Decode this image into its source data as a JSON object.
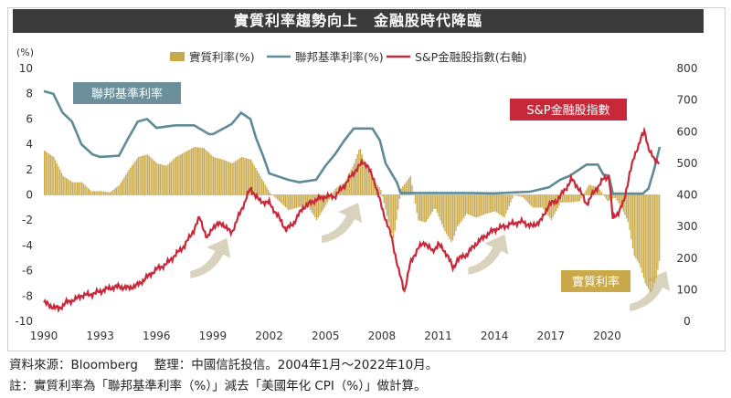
{
  "title": "實質利率趨勢向上　金融股時代降臨",
  "footer": {
    "source": "資料來源：Bloomberg　 整理：中國信託投信。2004年1月〜2022年10月。",
    "note": "註：實質利率為「聯邦基準利率（%）」減去「美國年化 CPI（%）」做計算。"
  },
  "colors": {
    "real_rate": "#c9a94a",
    "fed_rate": "#5f8a96",
    "sp_fin": "#c8293a",
    "arrow": "#d9d2bd",
    "label_box_fed": "#6b8f9b",
    "label_box_sp": "#c8293a",
    "label_box_real": "#c9a94a"
  },
  "chart_data": {
    "type": "line",
    "legend": [
      "實質利率(%)",
      "聯邦基準利率(%)",
      "S&P金融股指數(右軸)"
    ],
    "legend_position": "top",
    "y_left_unit": "(%)",
    "y_left_ticks": [
      "10",
      "8",
      "6",
      "4",
      "2",
      "0",
      "-2",
      "-4",
      "-6",
      "-8",
      "-10"
    ],
    "y_right_ticks": [
      "800",
      "700",
      "600",
      "500",
      "400",
      "300",
      "200",
      "100",
      "0"
    ],
    "x_ticks": [
      "1990",
      "1993",
      "1996",
      "1999",
      "2002",
      "2005",
      "2008",
      "2011",
      "2014",
      "2017",
      "2020"
    ],
    "ylim_left": [
      -10,
      10
    ],
    "ylim_right": [
      0,
      800
    ],
    "xlim": [
      1990,
      2022.8
    ],
    "annotations": [
      "聯邦基準利率",
      "S&P金融股指數",
      "實質利率"
    ],
    "series": [
      {
        "name": "聯邦基準利率(%)",
        "axis": "left",
        "points": [
          [
            1990,
            8.2
          ],
          [
            1990.5,
            8.0
          ],
          [
            1991,
            6.5
          ],
          [
            1991.5,
            5.8
          ],
          [
            1992,
            4.0
          ],
          [
            1992.6,
            3.2
          ],
          [
            1993,
            3.0
          ],
          [
            1994,
            3.1
          ],
          [
            1994.5,
            4.5
          ],
          [
            1995,
            5.8
          ],
          [
            1995.5,
            6.0
          ],
          [
            1996,
            5.3
          ],
          [
            1997,
            5.5
          ],
          [
            1998,
            5.5
          ],
          [
            1998.8,
            4.8
          ],
          [
            1999,
            4.8
          ],
          [
            1999.5,
            5.2
          ],
          [
            2000,
            5.6
          ],
          [
            2000.5,
            6.5
          ],
          [
            2001,
            6.0
          ],
          [
            2001.3,
            4.5
          ],
          [
            2001.7,
            3.0
          ],
          [
            2002,
            1.7
          ],
          [
            2003,
            1.2
          ],
          [
            2003.6,
            1.0
          ],
          [
            2004.5,
            1.2
          ],
          [
            2005,
            2.3
          ],
          [
            2005.5,
            3.2
          ],
          [
            2006,
            4.3
          ],
          [
            2006.5,
            5.25
          ],
          [
            2007.5,
            5.25
          ],
          [
            2007.9,
            4.3
          ],
          [
            2008.2,
            2.5
          ],
          [
            2008.8,
            1.0
          ],
          [
            2009,
            0.15
          ],
          [
            2010,
            0.15
          ],
          [
            2012,
            0.15
          ],
          [
            2014,
            0.12
          ],
          [
            2015.9,
            0.25
          ],
          [
            2016.9,
            0.6
          ],
          [
            2017.5,
            1.2
          ],
          [
            2018,
            1.5
          ],
          [
            2018.9,
            2.4
          ],
          [
            2019.5,
            2.4
          ],
          [
            2019.8,
            1.6
          ],
          [
            2020.1,
            1.5
          ],
          [
            2020.3,
            0.1
          ],
          [
            2021.9,
            0.1
          ],
          [
            2022.2,
            0.5
          ],
          [
            2022.5,
            2.0
          ],
          [
            2022.8,
            3.8
          ]
        ]
      },
      {
        "name": "S&P金融股指數(右軸)",
        "axis": "right",
        "points": [
          [
            1990,
            60
          ],
          [
            1990.5,
            45
          ],
          [
            1990.8,
            40
          ],
          [
            1991.2,
            60
          ],
          [
            1991.7,
            70
          ],
          [
            1992,
            82
          ],
          [
            1992.5,
            85
          ],
          [
            1993,
            95
          ],
          [
            1993.5,
            105
          ],
          [
            1994,
            110
          ],
          [
            1994.5,
            105
          ],
          [
            1995,
            115
          ],
          [
            1995.5,
            140
          ],
          [
            1996,
            165
          ],
          [
            1996.5,
            180
          ],
          [
            1997,
            210
          ],
          [
            1997.5,
            240
          ],
          [
            1998,
            290
          ],
          [
            1998.3,
            330
          ],
          [
            1998.7,
            260
          ],
          [
            1999,
            300
          ],
          [
            1999.5,
            310
          ],
          [
            1999.8,
            290
          ],
          [
            2000,
            280
          ],
          [
            2000.5,
            350
          ],
          [
            2001,
            420
          ],
          [
            2001.5,
            380
          ],
          [
            2002,
            375
          ],
          [
            2002.5,
            330
          ],
          [
            2002.9,
            290
          ],
          [
            2003.3,
            310
          ],
          [
            2003.8,
            360
          ],
          [
            2004.5,
            385
          ],
          [
            2005,
            395
          ],
          [
            2005.5,
            395
          ],
          [
            2006,
            430
          ],
          [
            2006.5,
            470
          ],
          [
            2007,
            505
          ],
          [
            2007.2,
            495
          ],
          [
            2007.6,
            445
          ],
          [
            2008,
            360
          ],
          [
            2008.5,
            270
          ],
          [
            2008.9,
            160
          ],
          [
            2009.2,
            95
          ],
          [
            2009.5,
            180
          ],
          [
            2009.9,
            230
          ],
          [
            2010.3,
            250
          ],
          [
            2010.7,
            220
          ],
          [
            2011,
            245
          ],
          [
            2011.5,
            210
          ],
          [
            2011.8,
            165
          ],
          [
            2012,
            195
          ],
          [
            2012.5,
            210
          ],
          [
            2013,
            245
          ],
          [
            2013.5,
            270
          ],
          [
            2014,
            290
          ],
          [
            2014.5,
            300
          ],
          [
            2015,
            310
          ],
          [
            2015.5,
            315
          ],
          [
            2016,
            300
          ],
          [
            2016.5,
            320
          ],
          [
            2016.9,
            370
          ],
          [
            2017.3,
            380
          ],
          [
            2017.8,
            420
          ],
          [
            2018.1,
            450
          ],
          [
            2018.5,
            420
          ],
          [
            2018.9,
            370
          ],
          [
            2019.2,
            400
          ],
          [
            2019.8,
            450
          ],
          [
            2020.1,
            460
          ],
          [
            2020.3,
            325
          ],
          [
            2020.6,
            345
          ],
          [
            2020.9,
            380
          ],
          [
            2021.2,
            470
          ],
          [
            2021.5,
            530
          ],
          [
            2021.8,
            580
          ],
          [
            2022.0,
            600
          ],
          [
            2022.2,
            550
          ],
          [
            2022.5,
            510
          ],
          [
            2022.8,
            505
          ]
        ]
      },
      {
        "name": "實質利率(%)",
        "axis": "left",
        "type": "bar",
        "points": [
          [
            1990,
            3.5
          ],
          [
            1990.5,
            3.0
          ],
          [
            1991,
            1.5
          ],
          [
            1991.5,
            1.0
          ],
          [
            1992,
            1.0
          ],
          [
            1992.5,
            0.3
          ],
          [
            1993,
            0.3
          ],
          [
            1993.5,
            0.2
          ],
          [
            1994,
            0.8
          ],
          [
            1994.5,
            2.0
          ],
          [
            1995,
            3.0
          ],
          [
            1995.5,
            3.2
          ],
          [
            1996,
            2.5
          ],
          [
            1996.5,
            2.3
          ],
          [
            1997,
            3.0
          ],
          [
            1997.5,
            3.4
          ],
          [
            1998,
            3.8
          ],
          [
            1998.5,
            3.7
          ],
          [
            1999,
            3.0
          ],
          [
            1999.5,
            2.8
          ],
          [
            2000,
            2.5
          ],
          [
            2000.5,
            3.0
          ],
          [
            2001,
            2.8
          ],
          [
            2001.5,
            1.5
          ],
          [
            2002,
            0.2
          ],
          [
            2002.5,
            -0.5
          ],
          [
            2003,
            -1.2
          ],
          [
            2003.5,
            -1.0
          ],
          [
            2004,
            -0.8
          ],
          [
            2004.5,
            -2.0
          ],
          [
            2005,
            -0.8
          ],
          [
            2005.5,
            0.5
          ],
          [
            2006,
            1.0
          ],
          [
            2006.5,
            2.5
          ],
          [
            2006.8,
            3.8
          ],
          [
            2007,
            2.8
          ],
          [
            2007.5,
            1.2
          ],
          [
            2007.9,
            0.5
          ],
          [
            2008.3,
            -2.0
          ],
          [
            2008.6,
            -3.5
          ],
          [
            2009,
            0.5
          ],
          [
            2009.5,
            1.5
          ],
          [
            2009.9,
            -2.0
          ],
          [
            2010.3,
            -2.2
          ],
          [
            2010.8,
            -1.0
          ],
          [
            2011.3,
            -2.8
          ],
          [
            2011.7,
            -3.8
          ],
          [
            2012,
            -2.5
          ],
          [
            2012.5,
            -1.5
          ],
          [
            2013,
            -1.8
          ],
          [
            2013.5,
            -1.5
          ],
          [
            2014,
            -1.3
          ],
          [
            2014.5,
            -1.8
          ],
          [
            2015,
            0.0
          ],
          [
            2015.5,
            -0.2
          ],
          [
            2016,
            -1.0
          ],
          [
            2016.5,
            -1.0
          ],
          [
            2017,
            -2.0
          ],
          [
            2017.5,
            -0.6
          ],
          [
            2018,
            -0.6
          ],
          [
            2018.5,
            -0.5
          ],
          [
            2019,
            0.8
          ],
          [
            2019.5,
            0.6
          ],
          [
            2020,
            -0.5
          ],
          [
            2020.4,
            -0.2
          ],
          [
            2020.8,
            -1.2
          ],
          [
            2021.1,
            -2.2
          ],
          [
            2021.4,
            -4.8
          ],
          [
            2021.7,
            -5.5
          ],
          [
            2022.0,
            -7.0
          ],
          [
            2022.3,
            -7.8
          ],
          [
            2022.6,
            -6.5
          ],
          [
            2022.8,
            -4.8
          ]
        ]
      }
    ]
  }
}
